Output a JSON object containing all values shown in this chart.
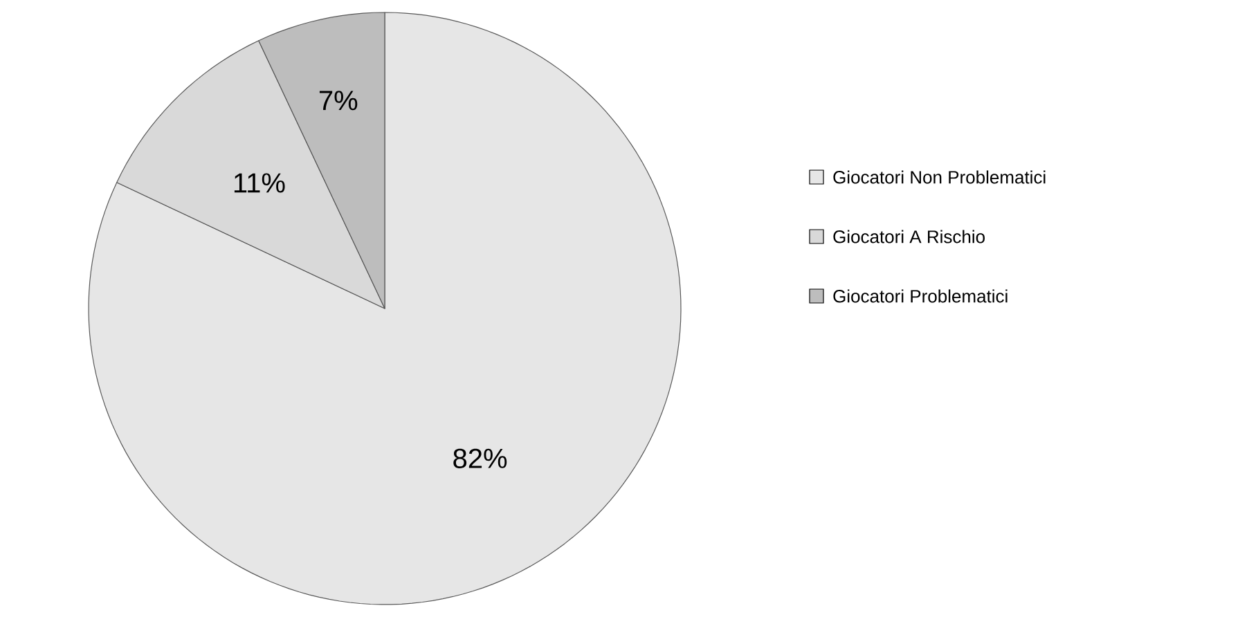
{
  "chart_data": {
    "type": "pie",
    "categories": [
      "Giocatori Non Problematici",
      "Giocatori A Rischio",
      "Giocatori Problematici"
    ],
    "values": [
      82,
      11,
      7
    ],
    "colors": [
      "#e6e6e6",
      "#d9d9d9",
      "#bdbdbd"
    ],
    "value_labels": [
      "82%",
      "11%",
      "7%"
    ],
    "legend": "right"
  }
}
